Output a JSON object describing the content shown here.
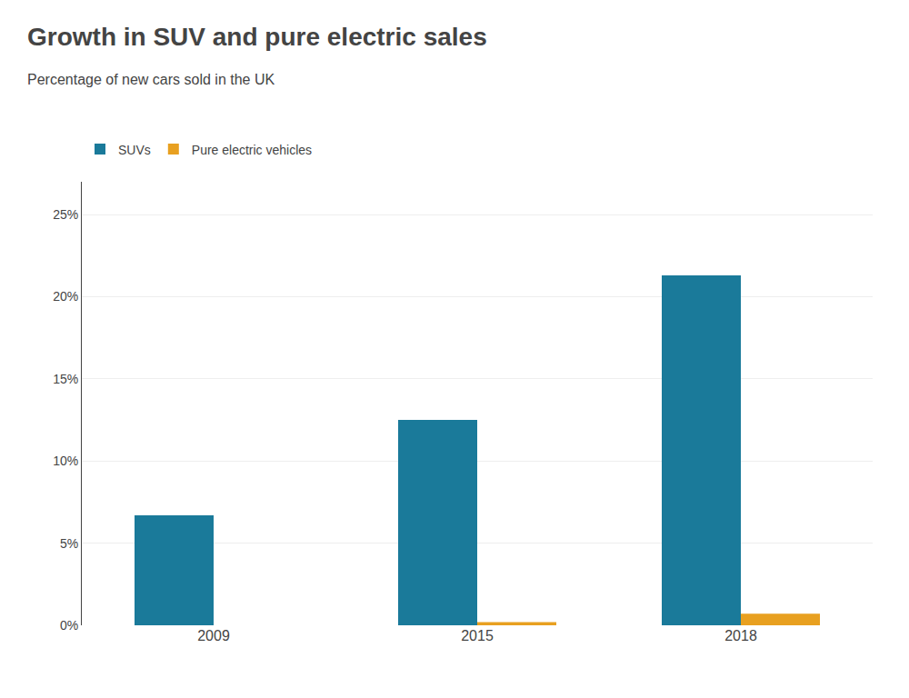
{
  "chart_data": {
    "type": "bar",
    "title": "Growth in SUV and pure electric sales",
    "subtitle": "Percentage of new cars sold in the UK",
    "categories": [
      "2009",
      "2015",
      "2018"
    ],
    "series": [
      {
        "name": "SUVs",
        "color": "#1a7a9a",
        "values": [
          6.7,
          12.5,
          21.3
        ]
      },
      {
        "name": "Pure electric vehicles",
        "color": "#e8a020",
        "values": [
          0.0,
          0.2,
          0.7
        ]
      }
    ],
    "ylim": [
      0,
      27
    ],
    "yticks": [
      {
        "value": 0,
        "label": "0%"
      },
      {
        "value": 5,
        "label": "5%"
      },
      {
        "value": 10,
        "label": "10%"
      },
      {
        "value": 15,
        "label": "15%"
      },
      {
        "value": 20,
        "label": "20%"
      },
      {
        "value": 25,
        "label": "25%"
      }
    ],
    "grid": true,
    "legend": "upper left"
  }
}
